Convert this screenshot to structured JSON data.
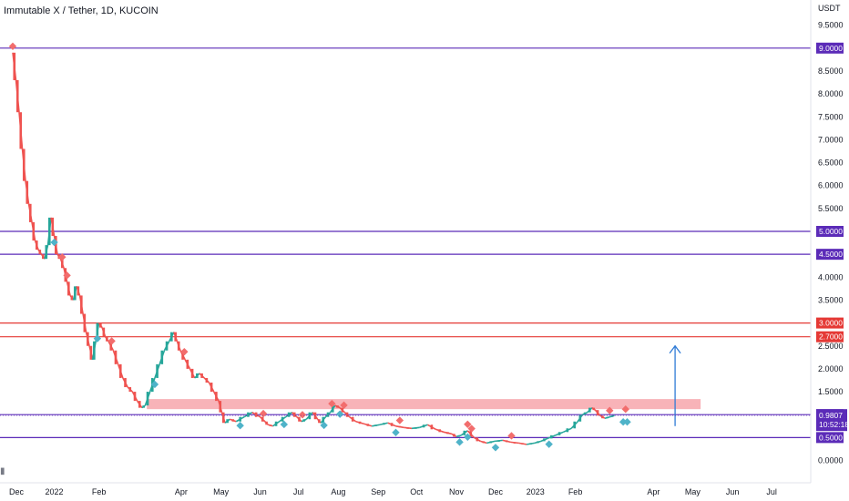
{
  "header": {
    "title": "Immutable X / Tether, 1D, KUCOIN"
  },
  "chart_data": {
    "type": "candlestick",
    "ylabel": "USDT",
    "ylim": [
      -0.5,
      10.0
    ],
    "yticks": [
      "9.5000",
      "9.0000",
      "8.5000",
      "8.0000",
      "7.5000",
      "7.0000",
      "6.5000",
      "6.0000",
      "5.5000",
      "5.0000",
      "4.5000",
      "4.0000",
      "3.5000",
      "3.0000",
      "2.5000",
      "2.0000",
      "1.5000",
      "1.0000",
      "0.5000",
      "0.0000"
    ],
    "xlabels": [
      {
        "label": "Dec",
        "t": -0.012
      },
      {
        "label": "2022",
        "t": 0.052
      },
      {
        "label": "Feb",
        "t": 0.108
      },
      {
        "label": "Apr",
        "t": 0.211
      },
      {
        "label": "May",
        "t": 0.261
      },
      {
        "label": "Jun",
        "t": 0.31
      },
      {
        "label": "Jul",
        "t": 0.358
      },
      {
        "label": "Aug",
        "t": 0.408
      },
      {
        "label": "Sep",
        "t": 0.458
      },
      {
        "label": "Oct",
        "t": 0.506
      },
      {
        "label": "Nov",
        "t": 0.556
      },
      {
        "label": "Dec",
        "t": 0.605
      },
      {
        "label": "2023",
        "t": 0.655
      },
      {
        "label": "Feb",
        "t": 0.705
      },
      {
        "label": "Apr",
        "t": 0.803
      },
      {
        "label": "May",
        "t": 0.852
      },
      {
        "label": "Jun",
        "t": 0.902
      },
      {
        "label": "Jul",
        "t": 0.951
      }
    ],
    "price_path": [
      [
        0.0,
        8.9
      ],
      [
        0.004,
        8.3
      ],
      [
        0.008,
        7.6
      ],
      [
        0.012,
        6.8
      ],
      [
        0.016,
        6.1
      ],
      [
        0.02,
        5.6
      ],
      [
        0.024,
        5.2
      ],
      [
        0.028,
        4.8
      ],
      [
        0.032,
        4.6
      ],
      [
        0.036,
        4.5
      ],
      [
        0.04,
        4.4
      ],
      [
        0.044,
        4.7
      ],
      [
        0.048,
        5.3
      ],
      [
        0.052,
        4.9
      ],
      [
        0.056,
        4.5
      ],
      [
        0.06,
        4.4
      ],
      [
        0.064,
        4.2
      ],
      [
        0.068,
        3.9
      ],
      [
        0.072,
        3.6
      ],
      [
        0.076,
        3.5
      ],
      [
        0.08,
        3.8
      ],
      [
        0.084,
        3.6
      ],
      [
        0.088,
        3.2
      ],
      [
        0.092,
        2.8
      ],
      [
        0.096,
        2.5
      ],
      [
        0.1,
        2.2
      ],
      [
        0.104,
        2.6
      ],
      [
        0.108,
        3.0
      ],
      [
        0.112,
        2.9
      ],
      [
        0.116,
        2.7
      ],
      [
        0.12,
        2.6
      ],
      [
        0.126,
        2.4
      ],
      [
        0.132,
        2.1
      ],
      [
        0.138,
        1.8
      ],
      [
        0.144,
        1.6
      ],
      [
        0.15,
        1.5
      ],
      [
        0.156,
        1.3
      ],
      [
        0.162,
        1.15
      ],
      [
        0.166,
        1.2
      ],
      [
        0.172,
        1.5
      ],
      [
        0.178,
        1.8
      ],
      [
        0.184,
        2.1
      ],
      [
        0.19,
        2.4
      ],
      [
        0.196,
        2.6
      ],
      [
        0.202,
        2.8
      ],
      [
        0.206,
        2.6
      ],
      [
        0.21,
        2.4
      ],
      [
        0.216,
        2.2
      ],
      [
        0.222,
        2.0
      ],
      [
        0.228,
        1.8
      ],
      [
        0.234,
        1.9
      ],
      [
        0.24,
        1.8
      ],
      [
        0.246,
        1.7
      ],
      [
        0.252,
        1.5
      ],
      [
        0.258,
        1.3
      ],
      [
        0.262,
        1.05
      ],
      [
        0.266,
        0.82
      ],
      [
        0.272,
        0.9
      ],
      [
        0.28,
        0.85
      ],
      [
        0.29,
        0.95
      ],
      [
        0.3,
        1.05
      ],
      [
        0.31,
        0.95
      ],
      [
        0.316,
        0.85
      ],
      [
        0.32,
        0.78
      ],
      [
        0.326,
        0.75
      ],
      [
        0.334,
        0.85
      ],
      [
        0.342,
        0.95
      ],
      [
        0.35,
        1.05
      ],
      [
        0.356,
        0.95
      ],
      [
        0.362,
        0.85
      ],
      [
        0.368,
        0.9
      ],
      [
        0.376,
        1.05
      ],
      [
        0.382,
        0.9
      ],
      [
        0.386,
        0.82
      ],
      [
        0.392,
        0.95
      ],
      [
        0.398,
        1.05
      ],
      [
        0.404,
        1.2
      ],
      [
        0.41,
        1.15
      ],
      [
        0.416,
        1.05
      ],
      [
        0.422,
        0.95
      ],
      [
        0.43,
        0.85
      ],
      [
        0.44,
        0.8
      ],
      [
        0.45,
        0.75
      ],
      [
        0.46,
        0.78
      ],
      [
        0.47,
        0.82
      ],
      [
        0.48,
        0.75
      ],
      [
        0.49,
        0.72
      ],
      [
        0.5,
        0.7
      ],
      [
        0.51,
        0.72
      ],
      [
        0.52,
        0.78
      ],
      [
        0.53,
        0.68
      ],
      [
        0.54,
        0.62
      ],
      [
        0.55,
        0.58
      ],
      [
        0.556,
        0.52
      ],
      [
        0.562,
        0.55
      ],
      [
        0.57,
        0.65
      ],
      [
        0.578,
        0.5
      ],
      [
        0.586,
        0.42
      ],
      [
        0.594,
        0.38
      ],
      [
        0.604,
        0.42
      ],
      [
        0.614,
        0.44
      ],
      [
        0.624,
        0.4
      ],
      [
        0.634,
        0.38
      ],
      [
        0.644,
        0.35
      ],
      [
        0.654,
        0.38
      ],
      [
        0.662,
        0.42
      ],
      [
        0.67,
        0.48
      ],
      [
        0.68,
        0.55
      ],
      [
        0.69,
        0.62
      ],
      [
        0.7,
        0.7
      ],
      [
        0.708,
        0.85
      ],
      [
        0.714,
        1.0
      ],
      [
        0.72,
        1.05
      ],
      [
        0.726,
        1.15
      ],
      [
        0.73,
        1.1
      ],
      [
        0.736,
        0.98
      ],
      [
        0.742,
        0.92
      ],
      [
        0.748,
        0.95
      ],
      [
        0.754,
        0.98
      ]
    ],
    "horizontal_levels": [
      {
        "price": 9.0,
        "label": "9.0000",
        "color": "#5b2bb8"
      },
      {
        "price": 5.0,
        "label": "5.0000",
        "color": "#5b2bb8"
      },
      {
        "price": 4.5,
        "label": "4.5000",
        "color": "#5b2bb8"
      },
      {
        "price": 3.0,
        "label": "3.0000",
        "color": "#e53935"
      },
      {
        "price": 2.7,
        "label": "2.7000",
        "color": "#e53935"
      },
      {
        "price": 1.0,
        "label": "1.0000",
        "color": "#5b2bb8"
      },
      {
        "price": 0.5,
        "label": "0.5000",
        "color": "#5b2bb8"
      }
    ],
    "resistance_zone": {
      "from_t": 0.168,
      "to_t": 0.862,
      "low": 1.12,
      "high": 1.34,
      "color": "#f7a6ab"
    },
    "current_price": {
      "price": 0.9807,
      "label": "0.9807",
      "countdown": "10:52:18",
      "color": "#5b2bb8"
    },
    "arrow": {
      "t": 0.83,
      "from": 0.75,
      "to": 2.5,
      "color": "#2f7bd6"
    },
    "top_markers_t": [
      0.0,
      0.062,
      0.068,
      0.124,
      0.215,
      0.314,
      0.363,
      0.4,
      0.415,
      0.485,
      0.57,
      0.575,
      0.625,
      0.748,
      0.768
    ],
    "bottom_markers_t": [
      0.052,
      0.106,
      0.178,
      0.285,
      0.34,
      0.39,
      0.41,
      0.48,
      0.56,
      0.57,
      0.605,
      0.672,
      0.765,
      0.77
    ]
  }
}
